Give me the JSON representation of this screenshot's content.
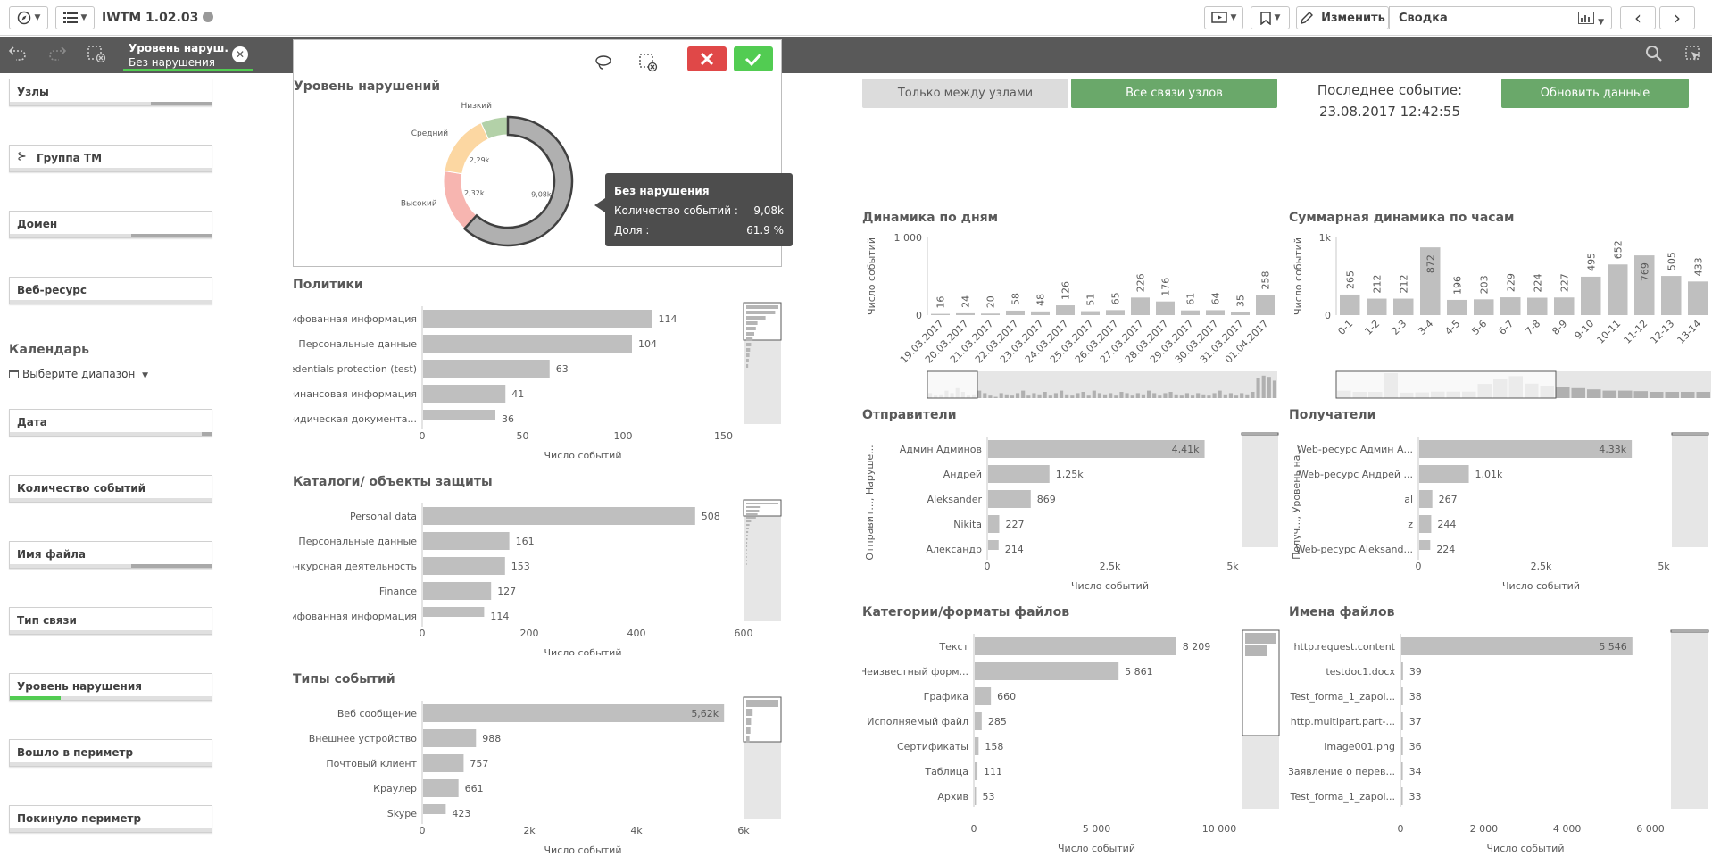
{
  "app": {
    "title": "IWTM 1.02.03"
  },
  "toolbar": {
    "edit_label": "Изменить",
    "sheet_label": "Сводка"
  },
  "selection": {
    "field": "Уровень наруш...",
    "value": "Без нарушения"
  },
  "filters": [
    {
      "label": "Узлы",
      "fill": 0.3
    },
    {
      "label": "Группа ТМ",
      "fill": 0
    },
    {
      "label": "Домен",
      "fill": 0.4
    },
    {
      "label": "Веб-ресурс",
      "fill": 0
    },
    {
      "label": "Дата",
      "fill": 0.05
    },
    {
      "label": "Количество событий",
      "fill": 0
    },
    {
      "label": "Имя файла",
      "fill": 0.4
    },
    {
      "label": "Тип связи",
      "fill": 0
    },
    {
      "label": "Уровень нарушения",
      "fill": 0.25
    },
    {
      "label": "Вошло в периметр",
      "fill": 0
    },
    {
      "label": "Покинуло периметр",
      "fill": 0
    }
  ],
  "calendar": {
    "title": "Календарь",
    "picker": "Выберите диапазон"
  },
  "buttons": {
    "between_nodes": "Только между узлами",
    "all_links": "Все связи узлов",
    "refresh": "Обновить данные"
  },
  "last_event": {
    "label": "Последнее событие:",
    "value": "23.08.2017 12:42:55"
  },
  "tooltip": {
    "title": "Без нарушения",
    "row1_label": "Количество событий :",
    "row1_value": "9,08k",
    "row2_label": "Доля :",
    "row2_value": "61.9 %"
  },
  "colors": {
    "bar": "#bfbfbf",
    "green": "#6aa86a",
    "red": "#e04848",
    "accept": "#52cc52",
    "high": "#f7b5b0",
    "medium": "#fcd7a2",
    "low": "#b3d1a8",
    "none": "#b0b0b0"
  },
  "chart_data": [
    {
      "id": "donut",
      "type": "pie",
      "title": "Уровень нарушений",
      "categories": [
        "Высокий",
        "Средний",
        "Низкий",
        "Без нарушения"
      ],
      "values": [
        2.32,
        2.29,
        1.01,
        9.08
      ],
      "value_labels": [
        "2,32k",
        "2,29k",
        "",
        "9,08k"
      ]
    },
    {
      "id": "policies",
      "type": "bar",
      "title": "Политики",
      "xlabel": "Число событий",
      "xlim": [
        0,
        160
      ],
      "ticks": [
        "0",
        "50",
        "100",
        "150"
      ],
      "tick_values": [
        0,
        50,
        100,
        150
      ],
      "categories": [
        "Грифованная информация",
        "Персональные данные",
        "Credentials protection (test)",
        "Финансовая информация",
        "Юридическая документа..."
      ],
      "values": [
        114,
        104,
        63,
        41,
        36
      ],
      "value_labels": [
        "114",
        "104",
        "63",
        "41",
        "36"
      ]
    },
    {
      "id": "catalogs",
      "type": "bar",
      "title": "Каталоги/ объекты защиты",
      "xlabel": "Число событий",
      "xlim": [
        0,
        600
      ],
      "ticks": [
        "0",
        "200",
        "400",
        "600"
      ],
      "tick_values": [
        0,
        200,
        400,
        600
      ],
      "categories": [
        "Personal data",
        "Персональные данные",
        "Конкурсная деятельность",
        "Finance",
        "Грифованная информация"
      ],
      "values": [
        508,
        161,
        153,
        127,
        114
      ],
      "value_labels": [
        "508",
        "161",
        "153",
        "127",
        "114"
      ]
    },
    {
      "id": "eventtypes",
      "type": "bar",
      "title": "Типы событий",
      "xlabel": "Число событий",
      "xlim": [
        0,
        6000
      ],
      "ticks": [
        "0",
        "2k",
        "4k",
        "6k"
      ],
      "tick_values": [
        0,
        2000,
        4000,
        6000
      ],
      "categories": [
        "Веб сообщение",
        "Внешнее устройство",
        "Почтовый клиент",
        "Краулер",
        "Skype"
      ],
      "values": [
        5620,
        988,
        757,
        661,
        423
      ],
      "value_labels": [
        "5,62k",
        "988",
        "757",
        "661",
        "423"
      ]
    },
    {
      "id": "daily",
      "type": "bar",
      "title": "Динамика по дням",
      "ylabel": "Число событий",
      "ylim": [
        0,
        1000
      ],
      "yticks": [
        "0",
        "1 000"
      ],
      "ytick_values": [
        0,
        1000
      ],
      "categories": [
        "19.03.2017",
        "20.03.2017",
        "21.03.2017",
        "22.03.2017",
        "23.03.2017",
        "24.03.2017",
        "25.03.2017",
        "26.03.2017",
        "27.03.2017",
        "28.03.2017",
        "29.03.2017",
        "30.03.2017",
        "31.03.2017",
        "01.04.2017"
      ],
      "values": [
        16,
        24,
        20,
        58,
        48,
        126,
        51,
        65,
        226,
        176,
        61,
        64,
        35,
        258
      ]
    },
    {
      "id": "hourly",
      "type": "bar",
      "title": "Суммарная динамика по часам",
      "ylabel": "Число событий",
      "ylim": [
        0,
        1000
      ],
      "yticks": [
        "0",
        "1k"
      ],
      "ytick_values": [
        0,
        1000
      ],
      "categories": [
        "0-1",
        "1-2",
        "2-3",
        "3-4",
        "4-5",
        "5-6",
        "6-7",
        "7-8",
        "8-9",
        "9-10",
        "10-11",
        "11-12",
        "12-13",
        "13-14"
      ],
      "values": [
        265,
        212,
        212,
        872,
        196,
        203,
        229,
        224,
        227,
        495,
        652,
        769,
        505,
        433
      ]
    },
    {
      "id": "senders",
      "type": "bar",
      "title": "Отправители",
      "ylabel": "Отправит..., Наруше...",
      "xlabel": "Число событий",
      "xlim": [
        0,
        5000
      ],
      "ticks": [
        "0",
        "2,5k",
        "5k"
      ],
      "tick_values": [
        0,
        2500,
        5000
      ],
      "categories": [
        "Админ Админов",
        "Андрей",
        "Aleksander",
        "Nikita",
        "Александр"
      ],
      "values": [
        4410,
        1250,
        869,
        227,
        214
      ],
      "value_labels": [
        "4,41k",
        "1,25k",
        "869",
        "227",
        "214"
      ]
    },
    {
      "id": "receivers",
      "type": "bar",
      "title": "Получатели",
      "ylabel": "Получ..., Уровень на...",
      "xlabel": "Число событий",
      "xlim": [
        0,
        5000
      ],
      "ticks": [
        "0",
        "2,5k",
        "5k"
      ],
      "tick_values": [
        0,
        2500,
        5000
      ],
      "categories": [
        "Web-ресурс Админ А...",
        "Web-ресурс Андрей ...",
        "al",
        "z",
        "Web-ресурс Aleksand..."
      ],
      "values": [
        4330,
        1010,
        267,
        244,
        224
      ],
      "value_labels": [
        "4,33k",
        "1,01k",
        "267",
        "244",
        "224"
      ]
    },
    {
      "id": "filecats",
      "type": "bar",
      "title": "Категории/форматы файлов",
      "xlabel": "Число событий",
      "xlim": [
        0,
        10000
      ],
      "ticks": [
        "0",
        "5 000",
        "10 000"
      ],
      "tick_values": [
        0,
        5000,
        10000
      ],
      "categories": [
        "Текст",
        "Неизвестный форм...",
        "Графика",
        "Исполняемый файл",
        "Сертификаты",
        "Таблица",
        "Архив"
      ],
      "values": [
        8209,
        5861,
        660,
        285,
        158,
        111,
        53
      ],
      "value_labels": [
        "8 209",
        "5 861",
        "660",
        "285",
        "158",
        "111",
        "53"
      ]
    },
    {
      "id": "filenames",
      "type": "bar",
      "title": "Имена файлов",
      "xlabel": "Число событий",
      "xlim": [
        0,
        6000
      ],
      "ticks": [
        "0",
        "2 000",
        "4 000",
        "6 000"
      ],
      "tick_values": [
        0,
        2000,
        4000,
        6000
      ],
      "categories": [
        "http.request.content",
        "testdoc1.docx",
        "Test_forma_1_zapol...",
        "http.multipart.part-...",
        "image001.png",
        "!Заявление о перев...",
        "Test_forma_1_zapol..."
      ],
      "values": [
        5546,
        39,
        38,
        37,
        36,
        34,
        33
      ],
      "value_labels": [
        "5 546",
        "39",
        "38",
        "37",
        "36",
        "34",
        "33"
      ]
    }
  ]
}
